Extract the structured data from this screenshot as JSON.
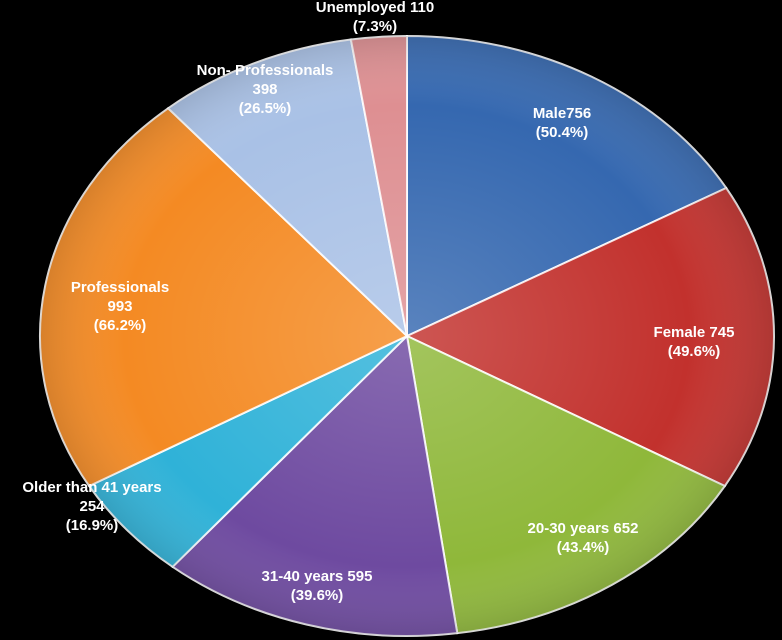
{
  "chart_data": {
    "type": "pie",
    "title": "",
    "slices": [
      {
        "label": "Male",
        "value": 756,
        "percent": "50.4%",
        "display_line1": "Male756",
        "display_line2": "(50.4%)",
        "color": "#3568b0",
        "text_color": "#ffffff"
      },
      {
        "label": "Female",
        "value": 745,
        "percent": "49.6%",
        "display_line1": "Female 745",
        "display_line2": "(49.6%)",
        "color": "#c2312d",
        "text_color": "#ffffff"
      },
      {
        "label": "20-30 years",
        "value": 652,
        "percent": "43.4%",
        "display_line1": "20-30 years 652",
        "display_line2": "(43.4%)",
        "color": "#8fb83a",
        "text_color": "#ffffff"
      },
      {
        "label": "31-40 years",
        "value": 595,
        "percent": "39.6%",
        "display_line1": "31-40 years 595",
        "display_line2": "(39.6%)",
        "color": "#6e4aa0",
        "text_color": "#ffffff"
      },
      {
        "label": "Older than 41 years",
        "value": 254,
        "percent": "16.9%",
        "display_line1": "Older than 41 years",
        "display_line2": "254",
        "display_line3": "(16.9%)",
        "color": "#2fb2d8",
        "text_color": "#ffffff"
      },
      {
        "label": "Professionals",
        "value": 993,
        "percent": "66.2%",
        "display_line1": "Professionals",
        "display_line2": "993",
        "display_line3": "(66.2%)",
        "color": "#f48a23",
        "text_color": "#ffffff"
      },
      {
        "label": "Non-Professionals",
        "value": 398,
        "percent": "26.5%",
        "display_line1": "Non- Professionals",
        "display_line2": "398",
        "display_line3": "(26.5%)",
        "color": "#a9c1e6",
        "text_color": "#ffffff"
      },
      {
        "label": "Unemployed",
        "value": 110,
        "percent": "7.3%",
        "display_line1": "Unemployed 110",
        "display_line2": "(7.3%)",
        "color": "#de8f92",
        "text_color": "#ffffff"
      }
    ],
    "start_direction": "top",
    "direction": "clockwise",
    "legend": "none"
  }
}
